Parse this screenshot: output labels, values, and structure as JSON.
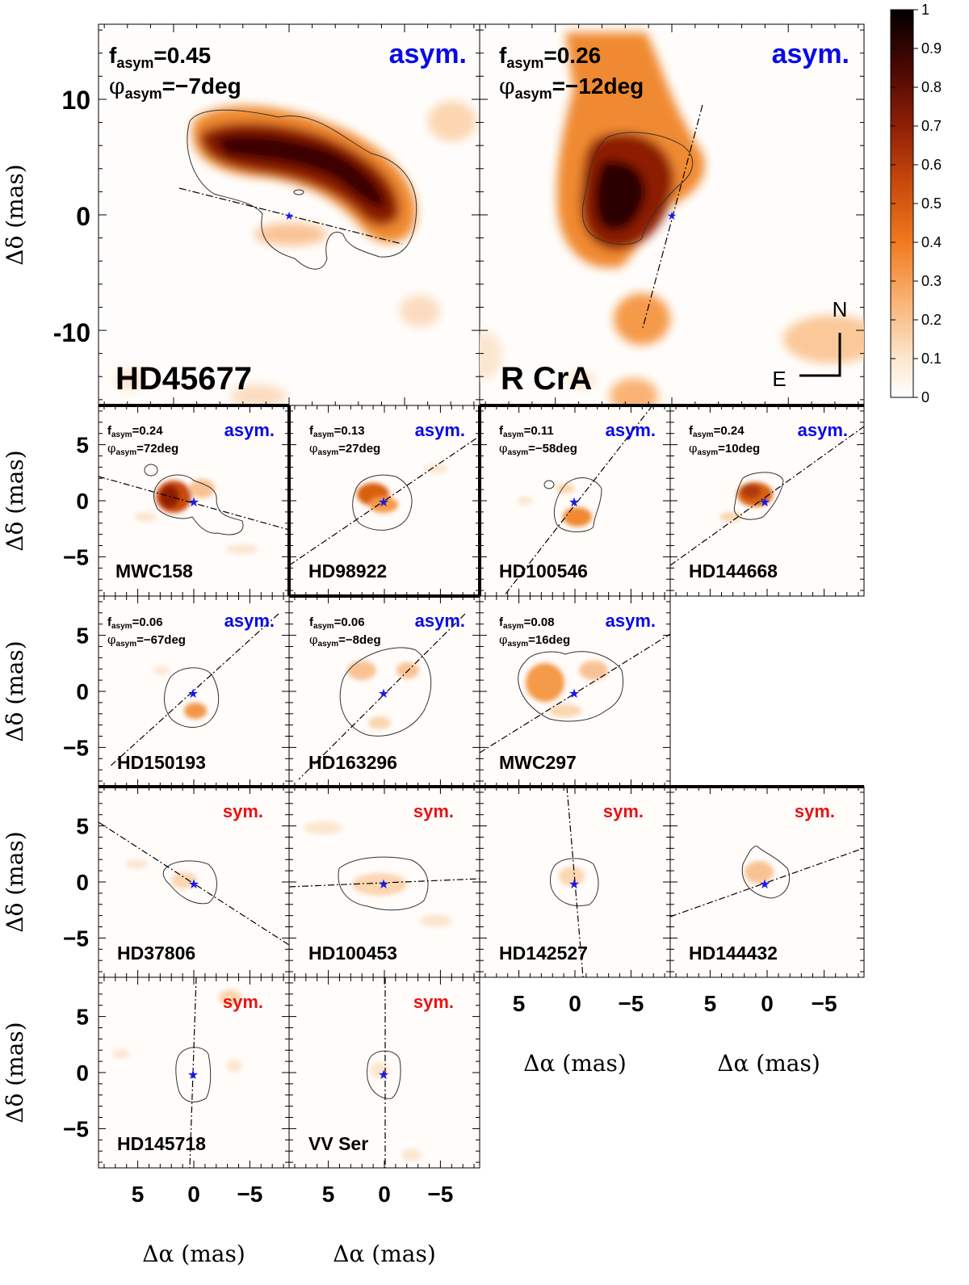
{
  "chart_data": {
    "type": "heatmap",
    "title": "",
    "xlabel": "Δα (mas)",
    "ylabel": "Δδ (mas)",
    "colorbar": {
      "ticks": [
        "0",
        "0.1",
        "0.2",
        "0.3",
        "0.4",
        "0.5",
        "0.6",
        "0.7",
        "0.8",
        "0.9",
        "1"
      ],
      "range": [
        0,
        1
      ]
    },
    "orientation": {
      "north": "N",
      "east": "E"
    },
    "large_panels": {
      "xlim": [
        16.5,
        -16.5
      ],
      "ylim": [
        -16.5,
        16.5
      ],
      "y_ticks": [
        "-10",
        "0",
        "10"
      ],
      "y_tick_values": [
        -10,
        0,
        10
      ]
    },
    "small_panels": {
      "xlim": [
        8.5,
        -8.5
      ],
      "ylim": [
        -8.5,
        8.5
      ],
      "x_ticks": [
        "5",
        "0",
        "−5"
      ],
      "x_tick_values": [
        5,
        0,
        -5
      ],
      "y_ticks": [
        "5",
        "0",
        "−5"
      ],
      "y_tick_values": [
        5,
        0,
        -5
      ]
    },
    "panels": [
      {
        "name": "HD45677",
        "category": "asym.",
        "f_label": "asym",
        "f_value": "=0.45",
        "phi_value": "=−7deg",
        "f_asym": 0.45,
        "phi_asym_deg": -7
      },
      {
        "name": "R CrA",
        "category": "asym.",
        "f_label": "asym",
        "f_value": "=0.26",
        "phi_value": "=−12deg",
        "f_asym": 0.26,
        "phi_asym_deg": -12
      },
      {
        "name": "MWC158",
        "category": "asym.",
        "f_label": "asym",
        "f_value": "=0.24",
        "phi_value": "=72deg",
        "f_asym": 0.24,
        "phi_asym_deg": 72
      },
      {
        "name": "HD98922",
        "category": "asym.",
        "f_label": "asym",
        "f_value": "=0.13",
        "phi_value": "=27deg",
        "f_asym": 0.13,
        "phi_asym_deg": 27
      },
      {
        "name": "HD100546",
        "category": "asym.",
        "f_label": "asym",
        "f_value": "=0.11",
        "phi_value": "=−58deg",
        "f_asym": 0.11,
        "phi_asym_deg": -58
      },
      {
        "name": "HD144668",
        "category": "asym.",
        "f_label": "asym",
        "f_value": "=0.24",
        "phi_value": "=10deg",
        "f_asym": 0.24,
        "phi_asym_deg": 10
      },
      {
        "name": "HD150193",
        "category": "asym.",
        "f_label": "asym",
        "f_value": "=0.06",
        "phi_value": "=−67deg",
        "f_asym": 0.06,
        "phi_asym_deg": -67
      },
      {
        "name": "HD163296",
        "category": "asym.",
        "f_label": "asym",
        "f_value": "=0.06",
        "phi_value": "=−8deg",
        "f_asym": 0.06,
        "phi_asym_deg": -8
      },
      {
        "name": "MWC297",
        "category": "asym.",
        "f_label": "asym",
        "f_value": "=0.08",
        "phi_value": "=16deg",
        "f_asym": 0.08,
        "phi_asym_deg": 16
      },
      {
        "name": "HD37806",
        "category": "sym."
      },
      {
        "name": "HD100453",
        "category": "sym."
      },
      {
        "name": "HD142527",
        "category": "sym."
      },
      {
        "name": "HD144432",
        "category": "sym."
      },
      {
        "name": "HD145718",
        "category": "sym."
      },
      {
        "name": "VV Ser",
        "category": "sym."
      }
    ]
  },
  "colors": {
    "asym": "#0a0ae6",
    "sym": "#e61414",
    "star": "#1a1ae6",
    "cmap_low": "#ffffff",
    "cmap_mid": "#f07a1e",
    "cmap_high": "#000000"
  },
  "icons": {
    "star": "star-icon"
  }
}
